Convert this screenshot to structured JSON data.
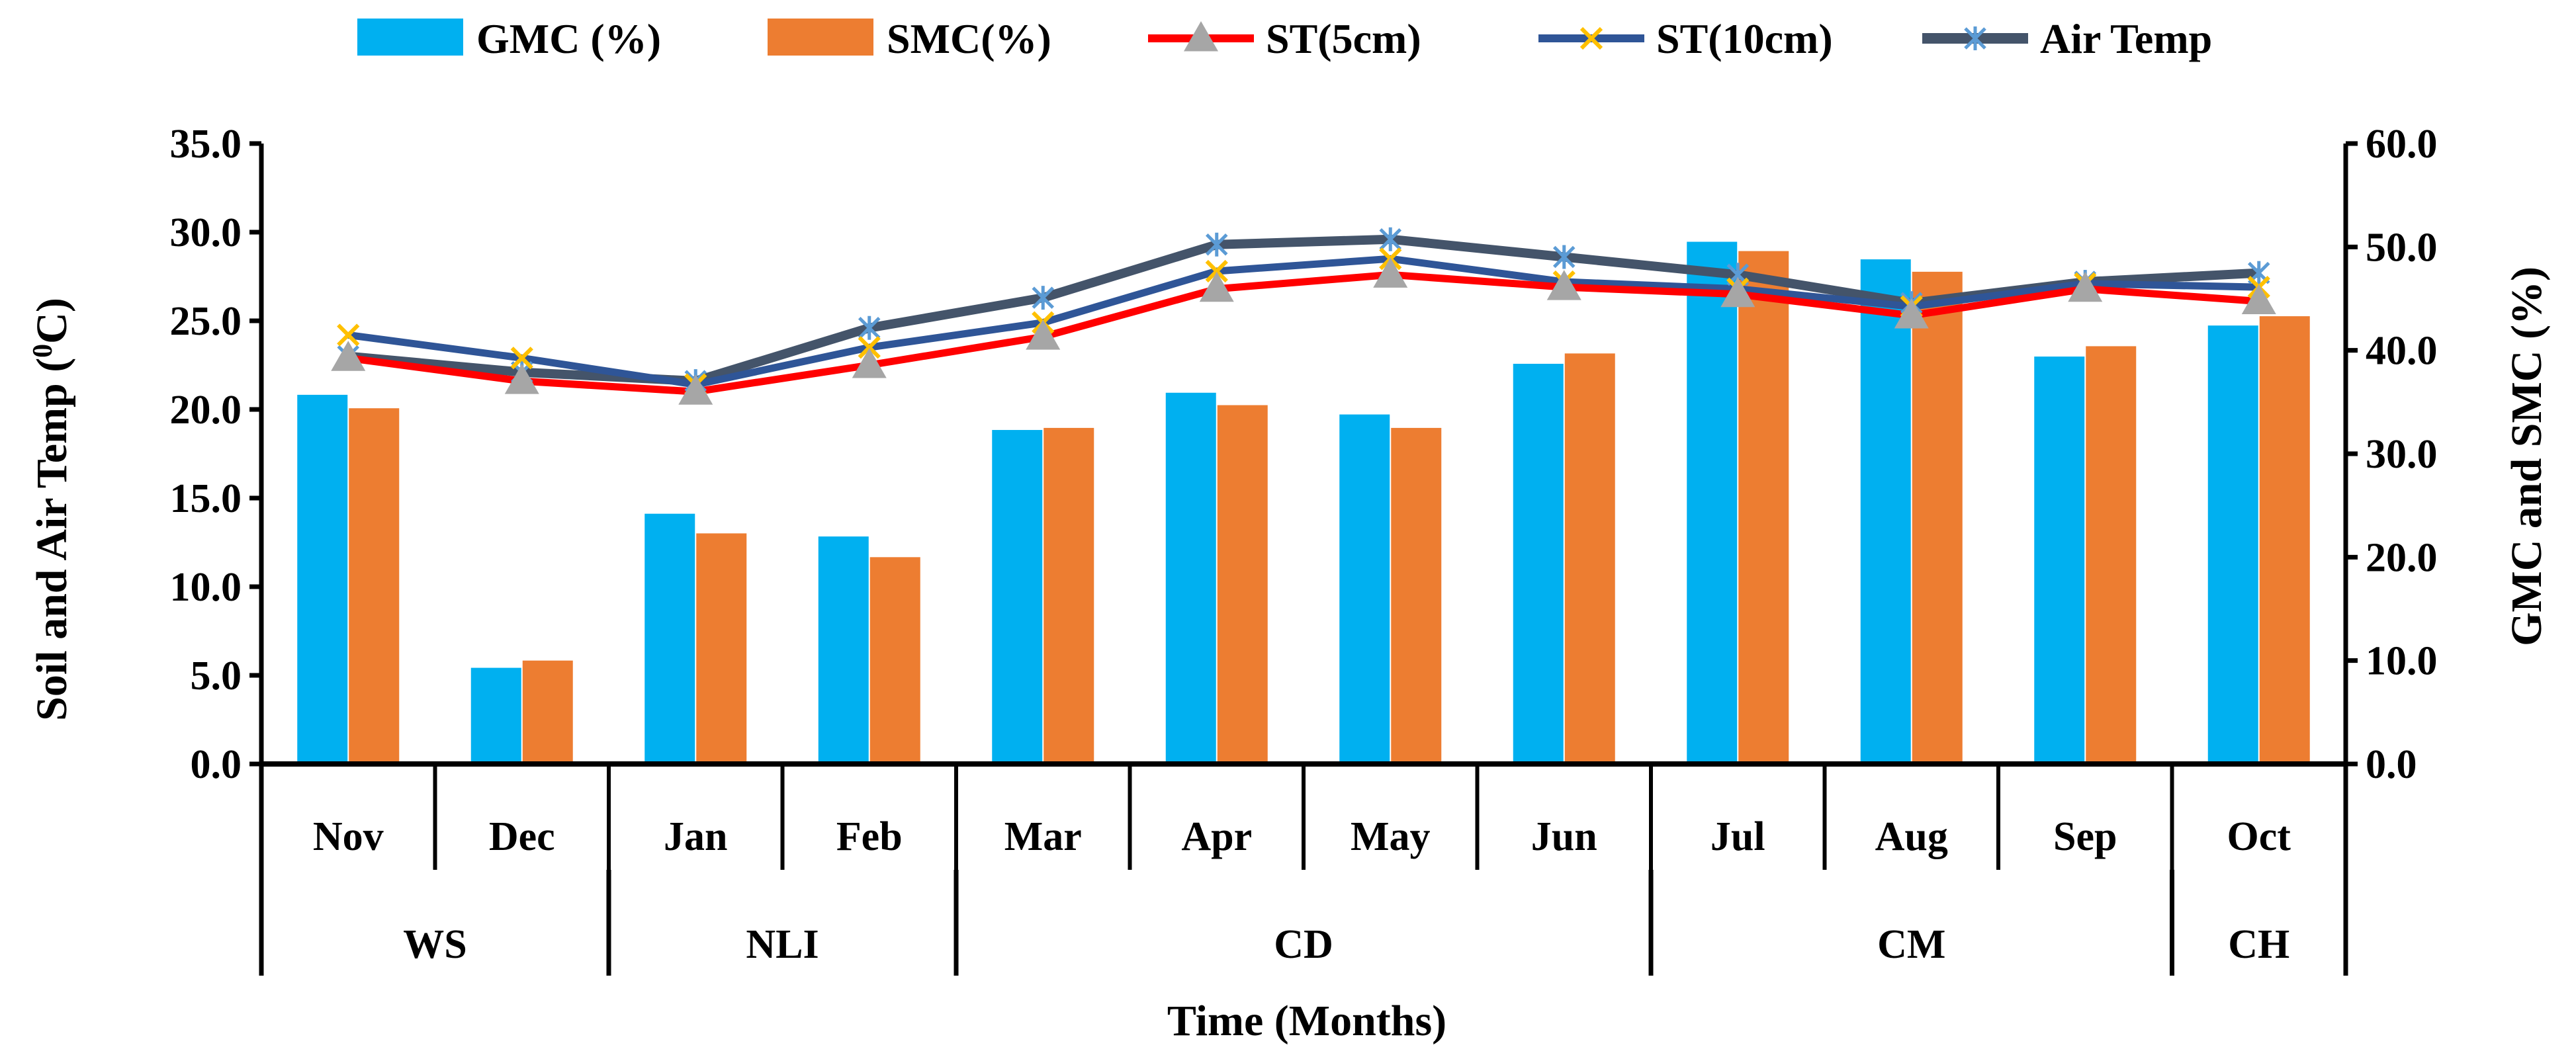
{
  "chart_data": {
    "type": "bar+line",
    "title": "",
    "xlabel": "Time (Months)",
    "ylabel_left": "Soil and Air Temp (0C)",
    "ylabel_left_base": "Soil and Air Temp (",
    "ylabel_left_sup": "0",
    "ylabel_left_tail": "C)",
    "ylabel_right": "GMC and SMC (%)",
    "ylim_left": [
      0,
      35
    ],
    "ylim_right": [
      0,
      60
    ],
    "left_ticks": [
      "0.0",
      "5.0",
      "10.0",
      "15.0",
      "20.0",
      "25.0",
      "30.0",
      "35.0"
    ],
    "right_ticks": [
      "0.0",
      "10.0",
      "20.0",
      "30.0",
      "40.0",
      "50.0",
      "60.0"
    ],
    "categories": [
      "Nov",
      "Dec",
      "Jan",
      "Feb",
      "Mar",
      "Apr",
      "May",
      "Jun",
      "Jul",
      "Aug",
      "Sep",
      "Oct"
    ],
    "groups": [
      {
        "label": "WS",
        "months": [
          "Nov",
          "Dec"
        ]
      },
      {
        "label": "NLI",
        "months": [
          "Jan",
          "Feb"
        ]
      },
      {
        "label": "CD",
        "months": [
          "Mar",
          "Apr",
          "May",
          "Jun"
        ]
      },
      {
        "label": "CM",
        "months": [
          "Jul",
          "Aug",
          "Sep"
        ]
      },
      {
        "label": "CH",
        "months": [
          "Oct"
        ]
      }
    ],
    "legend_position": "top",
    "series": [
      {
        "name": "GMC (%)",
        "kind": "bar",
        "axis": "right",
        "color": "#00B0F0",
        "values": [
          35.7,
          9.3,
          24.2,
          22.0,
          32.3,
          35.9,
          33.8,
          38.7,
          50.5,
          48.8,
          39.4,
          42.4
        ]
      },
      {
        "name": "SMC(%)",
        "kind": "bar",
        "axis": "right",
        "color": "#ED7D31",
        "values": [
          34.4,
          10.0,
          22.3,
          20.0,
          32.5,
          34.7,
          32.5,
          39.7,
          49.6,
          47.6,
          40.4,
          43.3
        ]
      },
      {
        "name": "ST(5cm)",
        "kind": "line",
        "axis": "left",
        "color": "#FF0000",
        "marker": "triangle",
        "marker_color": "#A6A6A6",
        "values": [
          22.9,
          21.6,
          21.0,
          22.5,
          24.1,
          26.8,
          27.6,
          26.9,
          26.5,
          25.3,
          26.8,
          26.1
        ]
      },
      {
        "name": "ST(10cm)",
        "kind": "line",
        "axis": "left",
        "color": "#2F5597",
        "marker": "x",
        "marker_color": "#FFC000",
        "values": [
          24.2,
          22.9,
          21.4,
          23.5,
          24.9,
          27.8,
          28.5,
          27.2,
          26.8,
          25.8,
          27.1,
          26.9
        ]
      },
      {
        "name": "Air Temp",
        "kind": "line",
        "axis": "left",
        "color": "#44546A",
        "marker": "star",
        "marker_color": "#5B9BD5",
        "values": [
          23.0,
          22.1,
          21.6,
          24.6,
          26.3,
          29.3,
          29.6,
          28.6,
          27.6,
          26.0,
          27.2,
          27.7
        ]
      }
    ]
  }
}
